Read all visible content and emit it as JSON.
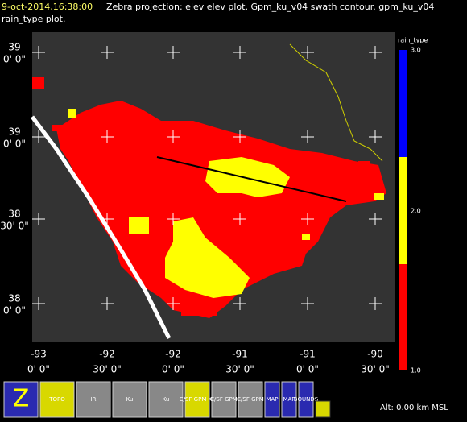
{
  "header": {
    "time": "9-oct-2014,16:38:00",
    "line1": "Zebra projection: elev elev  plot.  Gpm_ku_v04 swath contour.  gpm_ku_v04",
    "line2": "rain_type  plot."
  },
  "colorbar": {
    "title": "rain_type",
    "labels": [
      "3.0",
      "2.0",
      "1.0"
    ]
  },
  "y_labels": [
    {
      "deg": "39",
      "min": "0' 0\""
    },
    {
      "deg": "39",
      "min": "0' 0\""
    },
    {
      "deg": "38",
      "min": "30' 0\""
    },
    {
      "deg": "38",
      "min": "0' 0\""
    }
  ],
  "x_labels": [
    {
      "deg": "-93",
      "min": "0' 0\""
    },
    {
      "deg": "-92",
      "min": "30' 0\""
    },
    {
      "deg": "-92",
      "min": "0' 0\""
    },
    {
      "deg": "-91",
      "min": "30' 0\""
    },
    {
      "deg": "-91",
      "min": "0' 0\""
    },
    {
      "deg": "-90",
      "min": "30' 0\""
    }
  ],
  "toolbar": [
    "Z",
    "TOPO",
    "IR",
    "Ku",
    "Ku",
    "C/SF GPM Ku",
    "C/SF GPM",
    "C/SF GPM",
    "MAP",
    "MAP",
    "BOUNDS"
  ],
  "status": "Alt: 0.00 km MSL"
}
